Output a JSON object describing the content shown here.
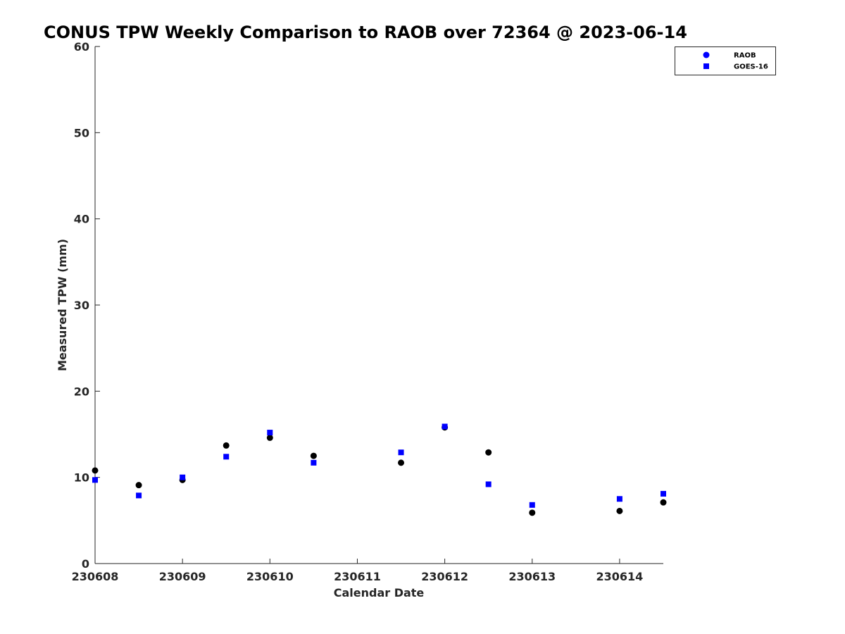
{
  "chart_data": {
    "type": "scatter",
    "title": "CONUS TPW Weekly Comparison to RAOB over 72364 @ 2023-06-14",
    "xlabel": "Calendar Date",
    "ylabel": "Measured TPW (mm)",
    "x_ticks": [
      "230608",
      "230609",
      "230610",
      "230611",
      "230612",
      "230613",
      "230614"
    ],
    "xlim_days": [
      0,
      6.5
    ],
    "ylim": [
      0,
      60
    ],
    "y_ticks": [
      0,
      10,
      20,
      30,
      40,
      50,
      60
    ],
    "grid": false,
    "legend_position": "top-right",
    "series": [
      {
        "name": "RAOB",
        "marker": "circle",
        "color": "#000000",
        "legend_color": "#0000ff",
        "points": [
          {
            "x": "230608 00Z",
            "y": 10.8
          },
          {
            "x": "230608 12Z",
            "y": 9.1
          },
          {
            "x": "230609 00Z",
            "y": 9.7
          },
          {
            "x": "230609 12Z",
            "y": 13.7
          },
          {
            "x": "230610 00Z",
            "y": 14.6
          },
          {
            "x": "230610 12Z",
            "y": 12.5
          },
          {
            "x": "230611 12Z",
            "y": 11.7
          },
          {
            "x": "230612 00Z",
            "y": 15.8
          },
          {
            "x": "230612 12Z",
            "y": 12.9
          },
          {
            "x": "230613 00Z",
            "y": 5.9
          },
          {
            "x": "230614 00Z",
            "y": 6.1
          },
          {
            "x": "230614 12Z",
            "y": 7.1
          }
        ]
      },
      {
        "name": "GOES-16",
        "marker": "square",
        "color": "#0000ff",
        "points": [
          {
            "x": "230608 00Z",
            "y": 9.7
          },
          {
            "x": "230608 12Z",
            "y": 7.9
          },
          {
            "x": "230609 00Z",
            "y": 10.0
          },
          {
            "x": "230609 12Z",
            "y": 12.4
          },
          {
            "x": "230610 00Z",
            "y": 15.2
          },
          {
            "x": "230610 12Z",
            "y": 11.7
          },
          {
            "x": "230611 12Z",
            "y": 12.9
          },
          {
            "x": "230612 00Z",
            "y": 15.9
          },
          {
            "x": "230612 12Z",
            "y": 9.2
          },
          {
            "x": "230613 00Z",
            "y": 6.8
          },
          {
            "x": "230614 00Z",
            "y": 7.5
          },
          {
            "x": "230614 12Z",
            "y": 8.1
          }
        ]
      }
    ]
  }
}
